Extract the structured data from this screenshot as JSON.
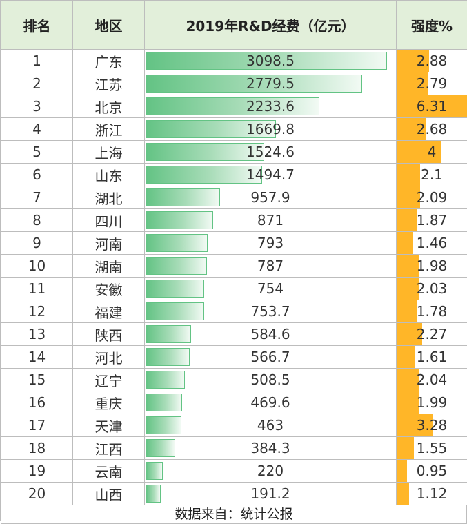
{
  "table": {
    "headers": [
      "排名",
      "地区",
      "2019年R&D经费（亿元）",
      "强度%"
    ],
    "max_expense": 3098.5,
    "max_intensity": 6.31,
    "rows": [
      {
        "rank": "1",
        "region": "广东",
        "expense": "3098.5",
        "intensity": "2.88"
      },
      {
        "rank": "2",
        "region": "江苏",
        "expense": "2779.5",
        "intensity": "2.79"
      },
      {
        "rank": "3",
        "region": "北京",
        "expense": "2233.6",
        "intensity": "6.31"
      },
      {
        "rank": "4",
        "region": "浙江",
        "expense": "1669.8",
        "intensity": "2.68"
      },
      {
        "rank": "5",
        "region": "上海",
        "expense": "1524.6",
        "intensity": "4"
      },
      {
        "rank": "6",
        "region": "山东",
        "expense": "1494.7",
        "intensity": "2.1"
      },
      {
        "rank": "7",
        "region": "湖北",
        "expense": "957.9",
        "intensity": "2.09"
      },
      {
        "rank": "8",
        "region": "四川",
        "expense": "871",
        "intensity": "1.87"
      },
      {
        "rank": "9",
        "region": "河南",
        "expense": "793",
        "intensity": "1.46"
      },
      {
        "rank": "10",
        "region": "湖南",
        "expense": "787",
        "intensity": "1.98"
      },
      {
        "rank": "11",
        "region": "安徽",
        "expense": "754",
        "intensity": "2.03"
      },
      {
        "rank": "12",
        "region": "福建",
        "expense": "753.7",
        "intensity": "1.78"
      },
      {
        "rank": "13",
        "region": "陕西",
        "expense": "584.6",
        "intensity": "2.27"
      },
      {
        "rank": "14",
        "region": "河北",
        "expense": "566.7",
        "intensity": "1.61"
      },
      {
        "rank": "15",
        "region": "辽宁",
        "expense": "508.5",
        "intensity": "2.04"
      },
      {
        "rank": "16",
        "region": "重庆",
        "expense": "469.6",
        "intensity": "1.99"
      },
      {
        "rank": "17",
        "region": "天津",
        "expense": "463",
        "intensity": "3.28"
      },
      {
        "rank": "18",
        "region": "江西",
        "expense": "384.3",
        "intensity": "1.55"
      },
      {
        "rank": "19",
        "region": "云南",
        "expense": "220",
        "intensity": "0.95"
      },
      {
        "rank": "20",
        "region": "山西",
        "expense": "191.2",
        "intensity": "1.12"
      }
    ]
  },
  "footer": "数据来自：统计公报",
  "colors": {
    "header_bg": "#e2efda",
    "expense_bar": "#63c384",
    "intensity_bar": "#ffb628",
    "grid": "#bdbdbd"
  }
}
